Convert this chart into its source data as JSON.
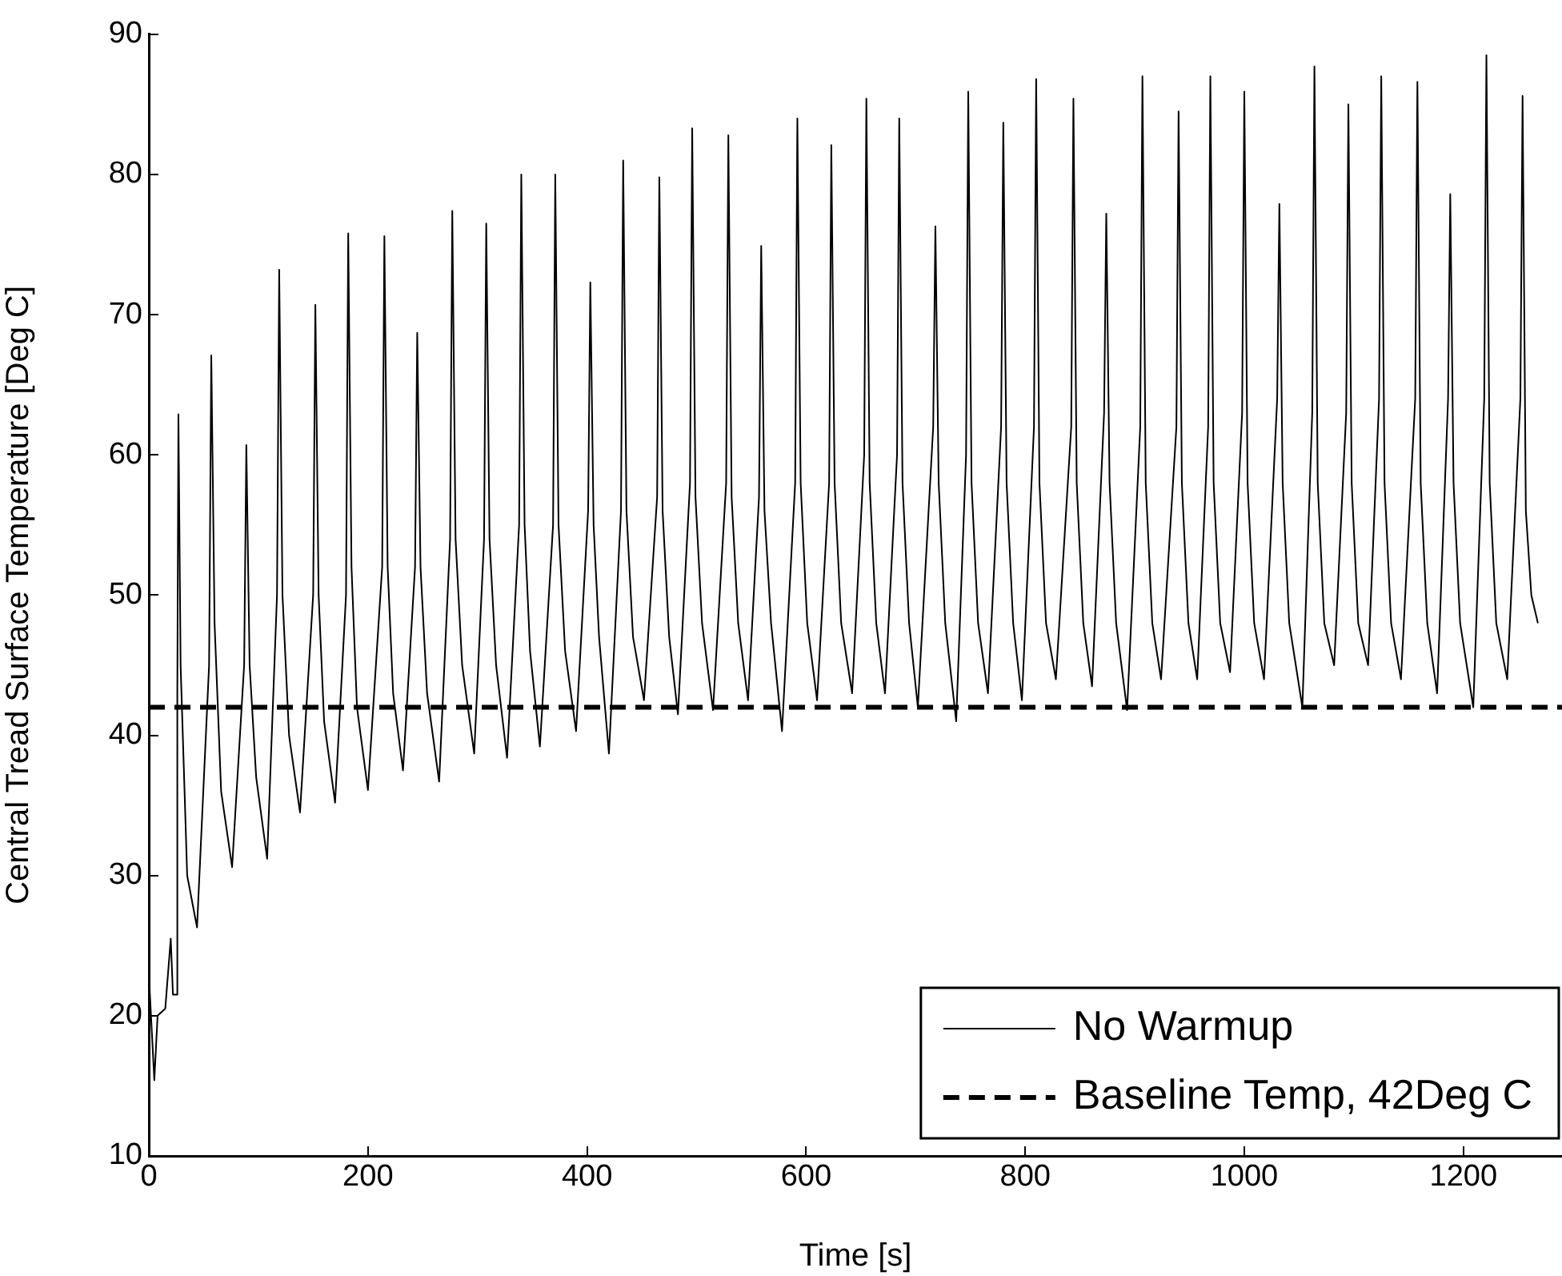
{
  "chart_data": {
    "type": "line",
    "xlabel": "Time [s]",
    "ylabel": "Central Tread Surface Temperature [Deg C]",
    "xlim": [
      0,
      1290
    ],
    "ylim": [
      10,
      90
    ],
    "xticks": [
      0,
      200,
      400,
      600,
      800,
      1000,
      1200
    ],
    "yticks": [
      10,
      20,
      30,
      40,
      50,
      60,
      70,
      80,
      90
    ],
    "grid": false,
    "legend": "bottom right",
    "marker": "none",
    "series": [
      {
        "name": "No Warmup",
        "color": "#000000",
        "line_style": "solid",
        "x": [
          0,
          5,
          8,
          15,
          20,
          22,
          25,
          26,
          27,
          29,
          35,
          44,
          55,
          57,
          60,
          66,
          76,
          87,
          89,
          92,
          98,
          108,
          117,
          119,
          122,
          128,
          138,
          150,
          152,
          155,
          160,
          170,
          180,
          182,
          185,
          190,
          200,
          213,
          215,
          218,
          223,
          232,
          243,
          245,
          248,
          254,
          265,
          275,
          277,
          280,
          286,
          297,
          306,
          308,
          311,
          317,
          327,
          338,
          340,
          343,
          348,
          357,
          369,
          371,
          374,
          380,
          390,
          401,
          403,
          406,
          411,
          420,
          431,
          433,
          436,
          442,
          452,
          464,
          466,
          469,
          475,
          483,
          494,
          496,
          499,
          505,
          515,
          527,
          529,
          532,
          538,
          547,
          557,
          559,
          562,
          568,
          578,
          590,
          592,
          595,
          601,
          610,
          621,
          623,
          626,
          632,
          642,
          653,
          655,
          658,
          664,
          672,
          683,
          685,
          688,
          694,
          702,
          716,
          718,
          721,
          727,
          737,
          746,
          748,
          751,
          757,
          766,
          778,
          780,
          783,
          789,
          797,
          808,
          810,
          813,
          819,
          828,
          842,
          844,
          847,
          853,
          861,
          872,
          874,
          877,
          883,
          893,
          905,
          907,
          910,
          916,
          924,
          938,
          940,
          943,
          949,
          957,
          967,
          969,
          972,
          978,
          987,
          998,
          1000,
          1003,
          1009,
          1018,
          1030,
          1032,
          1035,
          1041,
          1053,
          1062,
          1064,
          1067,
          1073,
          1082,
          1093,
          1095,
          1098,
          1104,
          1113,
          1123,
          1125,
          1128,
          1134,
          1143,
          1156,
          1158,
          1161,
          1167,
          1176,
          1186,
          1188,
          1191,
          1197,
          1209,
          1219,
          1221,
          1224,
          1230,
          1240,
          1252,
          1254,
          1257,
          1262,
          1268
        ],
        "values": [
          23,
          15.4,
          20,
          20.5,
          25.5,
          21.5,
          21.5,
          43,
          62.9,
          45,
          30,
          26.3,
          45,
          67.1,
          48,
          36,
          30.6,
          45,
          60.7,
          45,
          37,
          31.2,
          50,
          73.2,
          50,
          40,
          34.5,
          50,
          70.7,
          50,
          41,
          35.2,
          50,
          75.8,
          52,
          42,
          36.1,
          52,
          75.6,
          52,
          43,
          37.5,
          52,
          68.7,
          52,
          43,
          36.7,
          54,
          77.4,
          54,
          45,
          38.7,
          54,
          76.5,
          54,
          45,
          38.4,
          55,
          80,
          55,
          46,
          39.2,
          55,
          80,
          55,
          46,
          40.3,
          56,
          72.3,
          55,
          47,
          38.7,
          56,
          81,
          56,
          47,
          42.5,
          57,
          79.8,
          56,
          47,
          41.5,
          58,
          83.3,
          57,
          48,
          41.8,
          58,
          82.8,
          57,
          48,
          42.5,
          57,
          74.9,
          56,
          48,
          40.3,
          58,
          84,
          58,
          48,
          42.5,
          58,
          82.1,
          58,
          48,
          43,
          60,
          85.4,
          58,
          48,
          43,
          60,
          84,
          58,
          48,
          42,
          62,
          76.3,
          58,
          48,
          41,
          60,
          85.9,
          58,
          48,
          43,
          62,
          83.7,
          58,
          48,
          42.5,
          62,
          86.8,
          58,
          48,
          44,
          62,
          85.4,
          58,
          48,
          43.5,
          63,
          77.2,
          58,
          48,
          41.8,
          62,
          87,
          58,
          48,
          44,
          62,
          84.5,
          58,
          48,
          44,
          62,
          87,
          58,
          48,
          44.5,
          63,
          85.9,
          58,
          48,
          44,
          64,
          77.9,
          58,
          48,
          42,
          63,
          87.7,
          58,
          48,
          45,
          63,
          85,
          58,
          48,
          45,
          64,
          87,
          58,
          48,
          44,
          64,
          86.6,
          58,
          48,
          43,
          64,
          78.6,
          58,
          48,
          42,
          64,
          88.5,
          58,
          48,
          44,
          64,
          85.6,
          56,
          50,
          48
        ]
      },
      {
        "name": "Baseline Temp, 42Deg C",
        "color": "#000000",
        "line_style": "dashed",
        "x": [
          0,
          1290
        ],
        "values": [
          42,
          42
        ]
      }
    ]
  }
}
